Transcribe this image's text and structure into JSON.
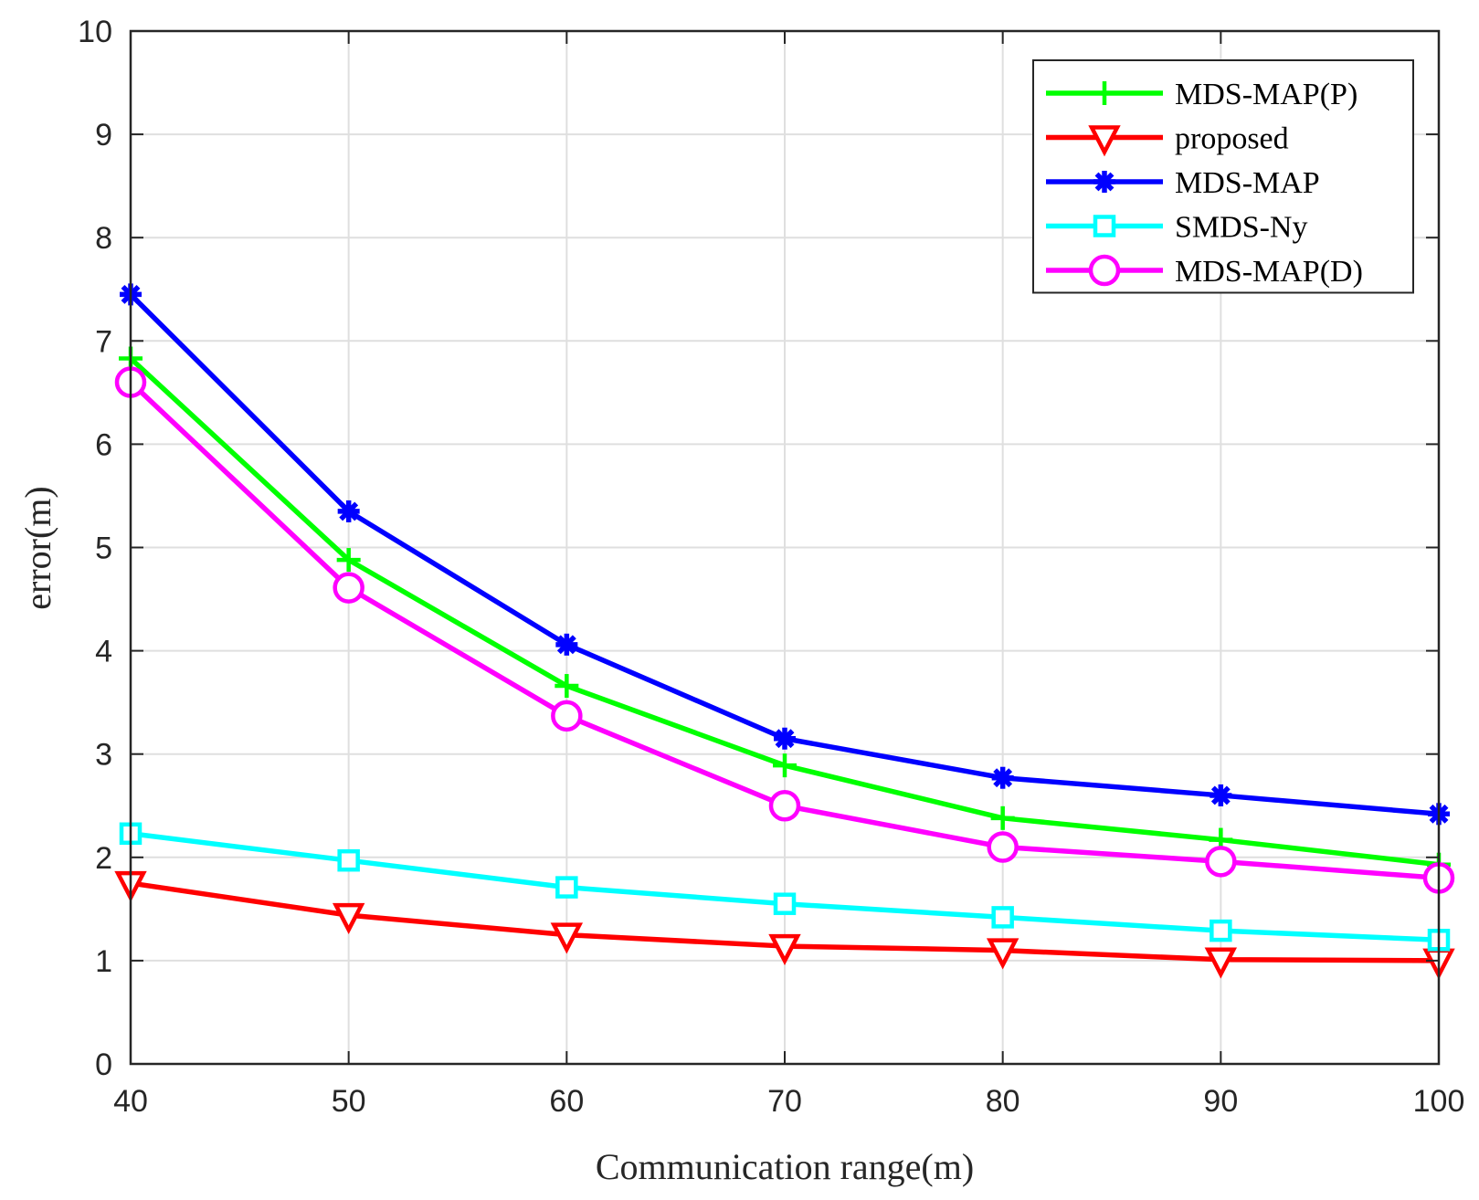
{
  "chart_data": {
    "type": "line",
    "title": "",
    "xlabel": "Communication range(m)",
    "ylabel": "error(m)",
    "x": [
      40,
      50,
      60,
      70,
      80,
      90,
      100
    ],
    "xlim": [
      40,
      100
    ],
    "ylim": [
      0,
      10
    ],
    "xticks": [
      "40",
      "50",
      "60",
      "70",
      "80",
      "90",
      "100"
    ],
    "yticks": [
      "0",
      "1",
      "2",
      "3",
      "4",
      "5",
      "6",
      "7",
      "8",
      "9",
      "10"
    ],
    "grid": true,
    "legend_position": "top-right",
    "series": [
      {
        "name": "MDS-MAP(P)",
        "color": "#00ff00",
        "marker": "plus",
        "values": [
          6.83,
          4.88,
          3.66,
          2.89,
          2.38,
          2.17,
          1.93
        ]
      },
      {
        "name": "proposed",
        "color": "#ff0000",
        "marker": "triangle-down",
        "values": [
          1.75,
          1.44,
          1.25,
          1.14,
          1.1,
          1.01,
          1.0
        ]
      },
      {
        "name": "MDS-MAP",
        "color": "#0000ff",
        "marker": "asterisk",
        "values": [
          7.45,
          5.35,
          4.06,
          3.15,
          2.77,
          2.6,
          2.42
        ]
      },
      {
        "name": "SMDS-Ny",
        "color": "#00ffff",
        "marker": "square",
        "values": [
          2.23,
          1.97,
          1.71,
          1.55,
          1.42,
          1.29,
          1.2
        ]
      },
      {
        "name": "MDS-MAP(D)",
        "color": "#ff00ff",
        "marker": "circle",
        "values": [
          6.6,
          4.61,
          3.37,
          2.5,
          2.1,
          1.96,
          1.8
        ]
      }
    ]
  }
}
